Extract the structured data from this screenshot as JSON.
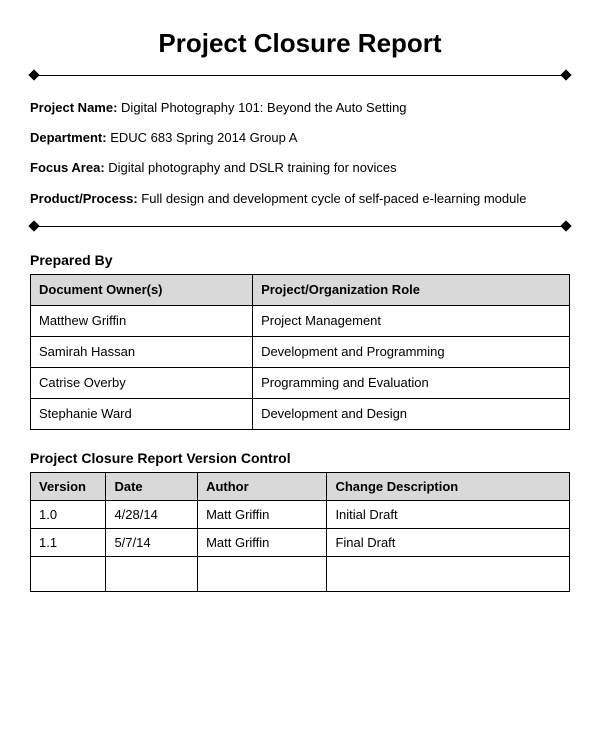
{
  "title": "Project Closure Report",
  "fields": {
    "project_name": {
      "label": "Project Name:",
      "value": "Digital Photography 101: Beyond the Auto Setting"
    },
    "department": {
      "label": "Department:",
      "value": "EDUC 683 Spring 2014 Group A"
    },
    "focus_area": {
      "label": "Focus Area:",
      "value": "Digital photography and DSLR training for novices"
    },
    "product_process": {
      "label": "Product/Process:",
      "value": "Full design and development cycle of self-paced e-learning module"
    }
  },
  "prepared_by": {
    "heading": "Prepared By",
    "columns": [
      "Document Owner(s)",
      "Project/Organization Role"
    ],
    "rows": [
      [
        "Matthew Griffin",
        "Project Management"
      ],
      [
        "Samirah Hassan",
        "Development and Programming"
      ],
      [
        "Catrise Overby",
        "Programming and Evaluation"
      ],
      [
        "Stephanie Ward",
        "Development and Design"
      ]
    ]
  },
  "version_control": {
    "heading": "Project Closure Report Version Control",
    "columns": [
      "Version",
      "Date",
      "Author",
      "Change Description"
    ],
    "rows": [
      [
        "1.0",
        "4/28/14",
        "Matt Griffin",
        "Initial Draft"
      ],
      [
        "1.1",
        "5/7/14",
        "Matt Griffin",
        "Final Draft"
      ],
      [
        "",
        "",
        "",
        ""
      ]
    ]
  },
  "style": {
    "background_color": "#ffffff",
    "text_color": "#000000",
    "table_header_bg": "#d9d9d9",
    "border_color": "#000000",
    "title_fontsize": 26,
    "body_fontsize": 13,
    "heading_fontsize": 14
  }
}
